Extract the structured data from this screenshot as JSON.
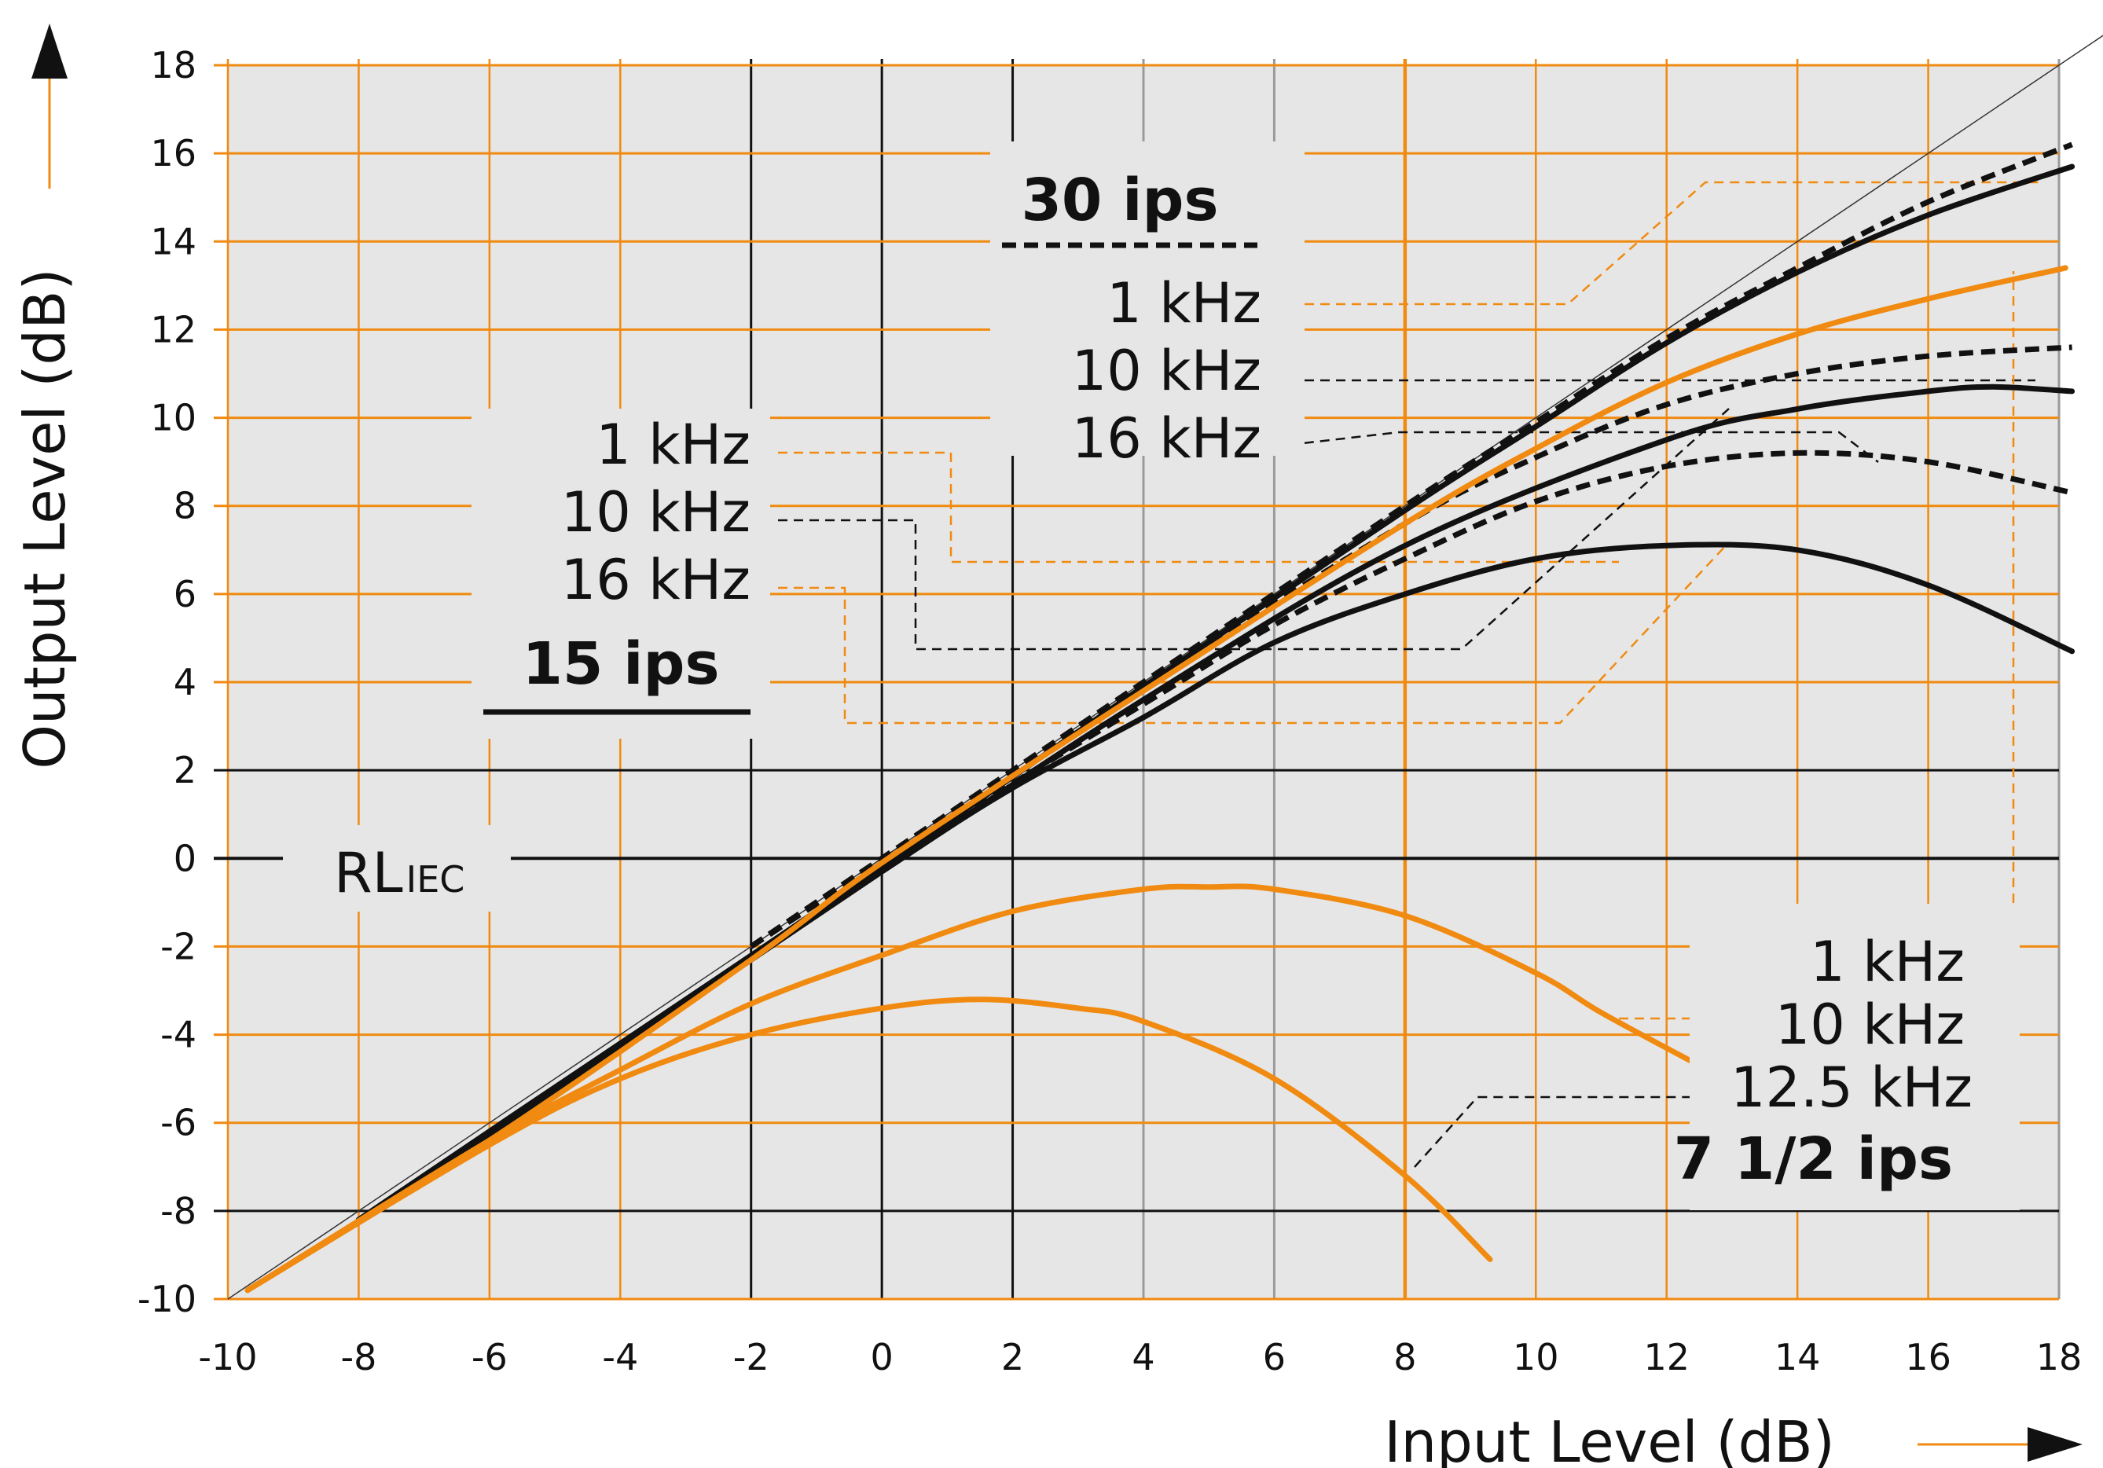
{
  "chart_data": {
    "type": "line",
    "xlabel": "Input Level (dB)",
    "ylabel": "Output Level (dB)",
    "xlim": [
      -10,
      18
    ],
    "ylim": [
      -10,
      18
    ],
    "x_ticks": [
      -10,
      -8,
      -6,
      -4,
      -2,
      0,
      2,
      4,
      6,
      8,
      10,
      12,
      14,
      16,
      18
    ],
    "y_ticks": [
      18,
      16,
      14,
      12,
      10,
      8,
      6,
      4,
      2,
      0,
      -2,
      -4,
      -6,
      -8,
      -10
    ],
    "reference": {
      "label_main": "RL",
      "label_sub": "IEC",
      "y": 0
    },
    "groups": [
      {
        "name": "30 ips",
        "style": "dashed",
        "color": "#111111",
        "labels": [
          "1 kHz",
          "10 kHz",
          "16 kHz"
        ],
        "series": [
          {
            "name": "1 kHz",
            "x": [
              -2,
              0,
              4,
              8,
              10,
              12,
              14,
              16,
              18.2
            ],
            "y": [
              -2,
              0,
              4,
              8,
              9.9,
              11.8,
              13.4,
              14.9,
              16.2
            ]
          },
          {
            "name": "10 kHz",
            "x": [
              -2,
              0,
              4,
              8,
              10,
              12,
              14,
              16,
              18.2
            ],
            "y": [
              -2,
              0,
              3.9,
              7.6,
              9.1,
              10.3,
              11.0,
              11.4,
              11.6
            ]
          },
          {
            "name": "16 kHz",
            "x": [
              -2,
              0,
              4,
              6,
              8,
              10,
              12,
              14,
              16,
              18.2
            ],
            "y": [
              -2,
              -0.1,
              3.5,
              5.3,
              6.8,
              8.1,
              8.9,
              9.2,
              9.0,
              8.3
            ]
          }
        ]
      },
      {
        "name": "15 ips",
        "style": "solid",
        "color": "#111111",
        "labels": [
          "1 kHz",
          "10 kHz",
          "16 kHz"
        ],
        "series": [
          {
            "name": "1 kHz",
            "x": [
              -8,
              -4,
              0,
              4,
              8,
              10,
              12,
              14,
              16,
              18.2
            ],
            "y": [
              -8.2,
              -4.2,
              -0.2,
              3.9,
              7.9,
              9.8,
              11.7,
              13.3,
              14.6,
              15.7
            ]
          },
          {
            "name": "10 kHz",
            "x": [
              -8,
              -4,
              0,
              4,
              8,
              12,
              14,
              16,
              17,
              18.2
            ],
            "y": [
              -8.2,
              -4.2,
              -0.3,
              3.6,
              7.1,
              9.5,
              10.2,
              10.6,
              10.7,
              10.6
            ]
          },
          {
            "name": "16 kHz",
            "x": [
              -8,
              -4,
              0,
              2,
              4,
              6,
              8,
              10,
              12,
              14,
              16,
              18.2
            ],
            "y": [
              -8.2,
              -4.3,
              -0.3,
              1.6,
              3.2,
              4.9,
              6.0,
              6.8,
              7.1,
              7.0,
              6.2,
              4.7
            ]
          }
        ]
      },
      {
        "name": "7 1/2 ips",
        "style": "solid",
        "color": "#f08a10",
        "labels": [
          "1 kHz",
          "10 kHz",
          "12.5 kHz"
        ],
        "series": [
          {
            "name": "1 kHz",
            "x": [
              -9.7,
              -6,
              -2,
              0,
              4,
              8,
              10,
              12,
              14,
              16,
              18.1
            ],
            "y": [
              -9.8,
              -6.4,
              -2.3,
              -0.1,
              3.8,
              7.6,
              9.3,
              10.8,
              11.9,
              12.7,
              13.4
            ]
          },
          {
            "name": "10 kHz",
            "x": [
              -9.7,
              -6,
              -4,
              -2,
              0,
              2,
              4,
              5,
              6,
              8,
              10,
              11,
              12.5
            ],
            "y": [
              -9.8,
              -6.4,
              -4.8,
              -3.3,
              -2.2,
              -1.2,
              -0.7,
              -0.65,
              -0.7,
              -1.3,
              -2.6,
              -3.5,
              -4.7
            ]
          },
          {
            "name": "12.5 kHz",
            "x": [
              -9.7,
              -6,
              -4,
              -2,
              0,
              1.5,
              3,
              4,
              6,
              8,
              9.3
            ],
            "y": [
              -9.8,
              -6.5,
              -5.0,
              -4.0,
              -3.4,
              -3.2,
              -3.4,
              -3.7,
              -5.0,
              -7.2,
              -9.1
            ]
          }
        ]
      }
    ]
  }
}
